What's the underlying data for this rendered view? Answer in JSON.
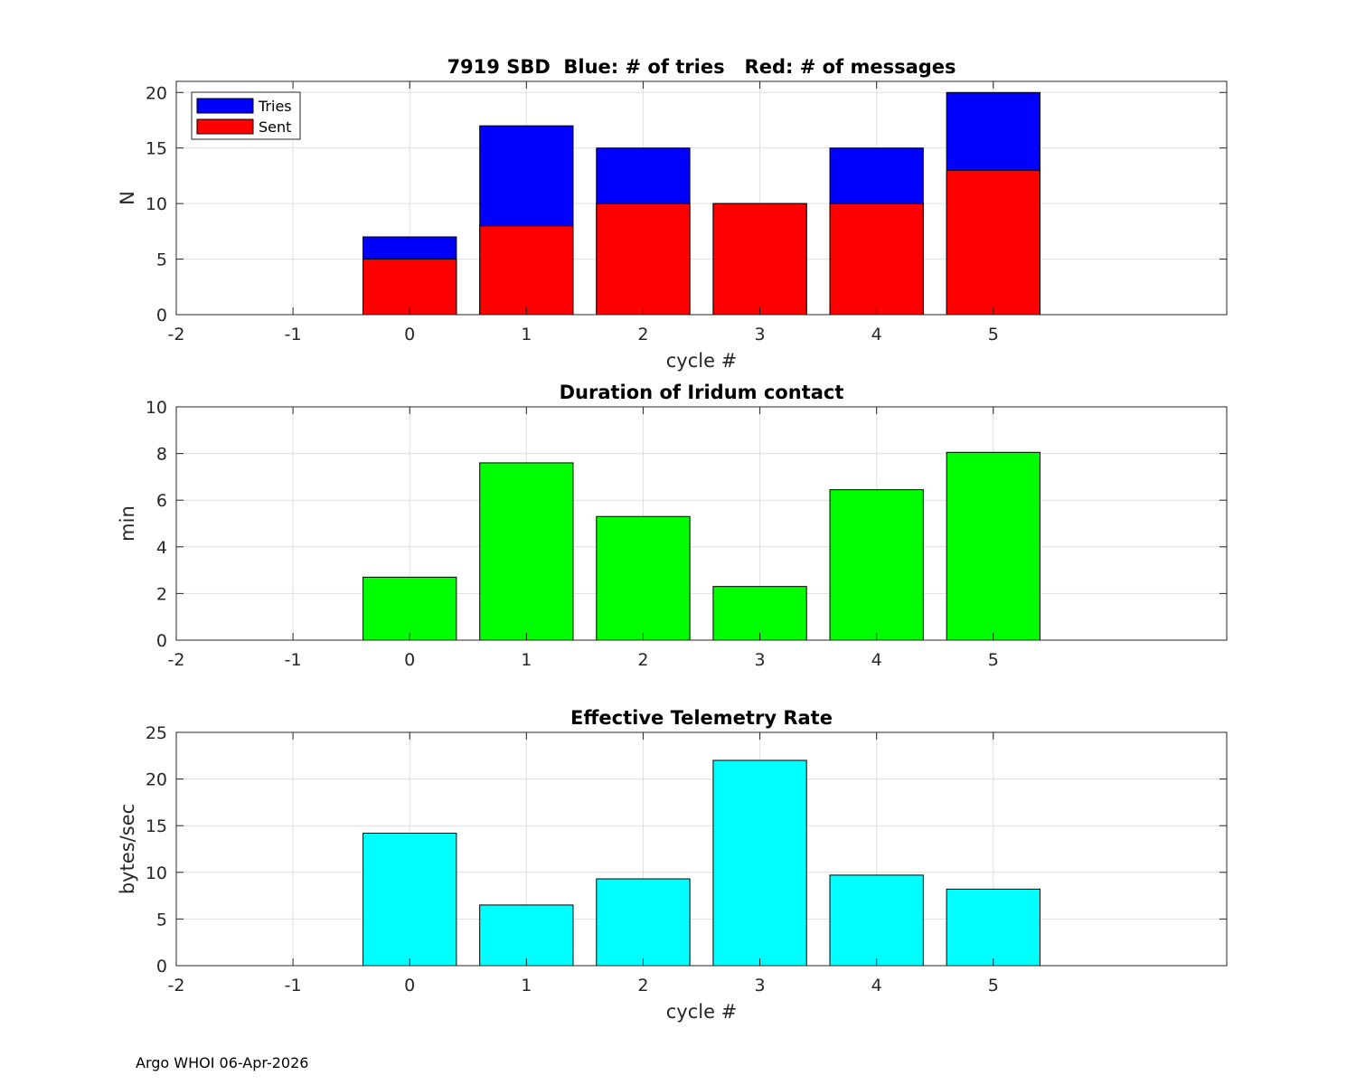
{
  "footer": "Argo WHOI 06-Apr-2026",
  "chart_data": [
    {
      "type": "bar",
      "stacked": "overlay",
      "title": "7919 SBD  Blue: # of tries   Red: # of messages",
      "xlabel": "cycle #",
      "ylabel": "N",
      "xlim": [
        -2,
        7
      ],
      "ylim": [
        0,
        21
      ],
      "xticks": [
        -2,
        -1,
        0,
        1,
        2,
        3,
        4,
        5
      ],
      "yticks": [
        0,
        5,
        10,
        15,
        20
      ],
      "grid": true,
      "legend": {
        "placement": "top-left",
        "entries": [
          "Tries",
          "Sent"
        ]
      },
      "x": [
        0,
        1,
        2,
        3,
        4,
        5
      ],
      "series": [
        {
          "name": "Tries",
          "color": "#0000ff",
          "values": [
            7,
            17,
            15,
            10,
            15,
            20
          ]
        },
        {
          "name": "Sent",
          "color": "#ff0000",
          "values": [
            5,
            8,
            10,
            10,
            10,
            13
          ]
        }
      ]
    },
    {
      "type": "bar",
      "title": "Duration of Iridum contact",
      "xlabel": "",
      "ylabel": "min",
      "xlim": [
        -2,
        7
      ],
      "ylim": [
        0,
        10
      ],
      "xticks": [
        -2,
        -1,
        0,
        1,
        2,
        3,
        4,
        5
      ],
      "yticks": [
        0,
        2,
        4,
        6,
        8,
        10
      ],
      "grid": true,
      "x": [
        0,
        1,
        2,
        3,
        4,
        5
      ],
      "series": [
        {
          "name": "Duration",
          "color": "#00ff00",
          "values": [
            2.7,
            7.6,
            5.3,
            2.3,
            6.45,
            8.05
          ]
        }
      ]
    },
    {
      "type": "bar",
      "title": "Effective Telemetry Rate",
      "xlabel": "cycle #",
      "ylabel": "bytes/sec",
      "xlim": [
        -2,
        7
      ],
      "ylim": [
        0,
        25
      ],
      "xticks": [
        -2,
        -1,
        0,
        1,
        2,
        3,
        4,
        5
      ],
      "yticks": [
        0,
        5,
        10,
        15,
        20,
        25
      ],
      "grid": true,
      "x": [
        0,
        1,
        2,
        3,
        4,
        5
      ],
      "series": [
        {
          "name": "Rate",
          "color": "#00ffff",
          "values": [
            14.2,
            6.5,
            9.3,
            22.0,
            9.7,
            8.2
          ]
        }
      ]
    }
  ]
}
